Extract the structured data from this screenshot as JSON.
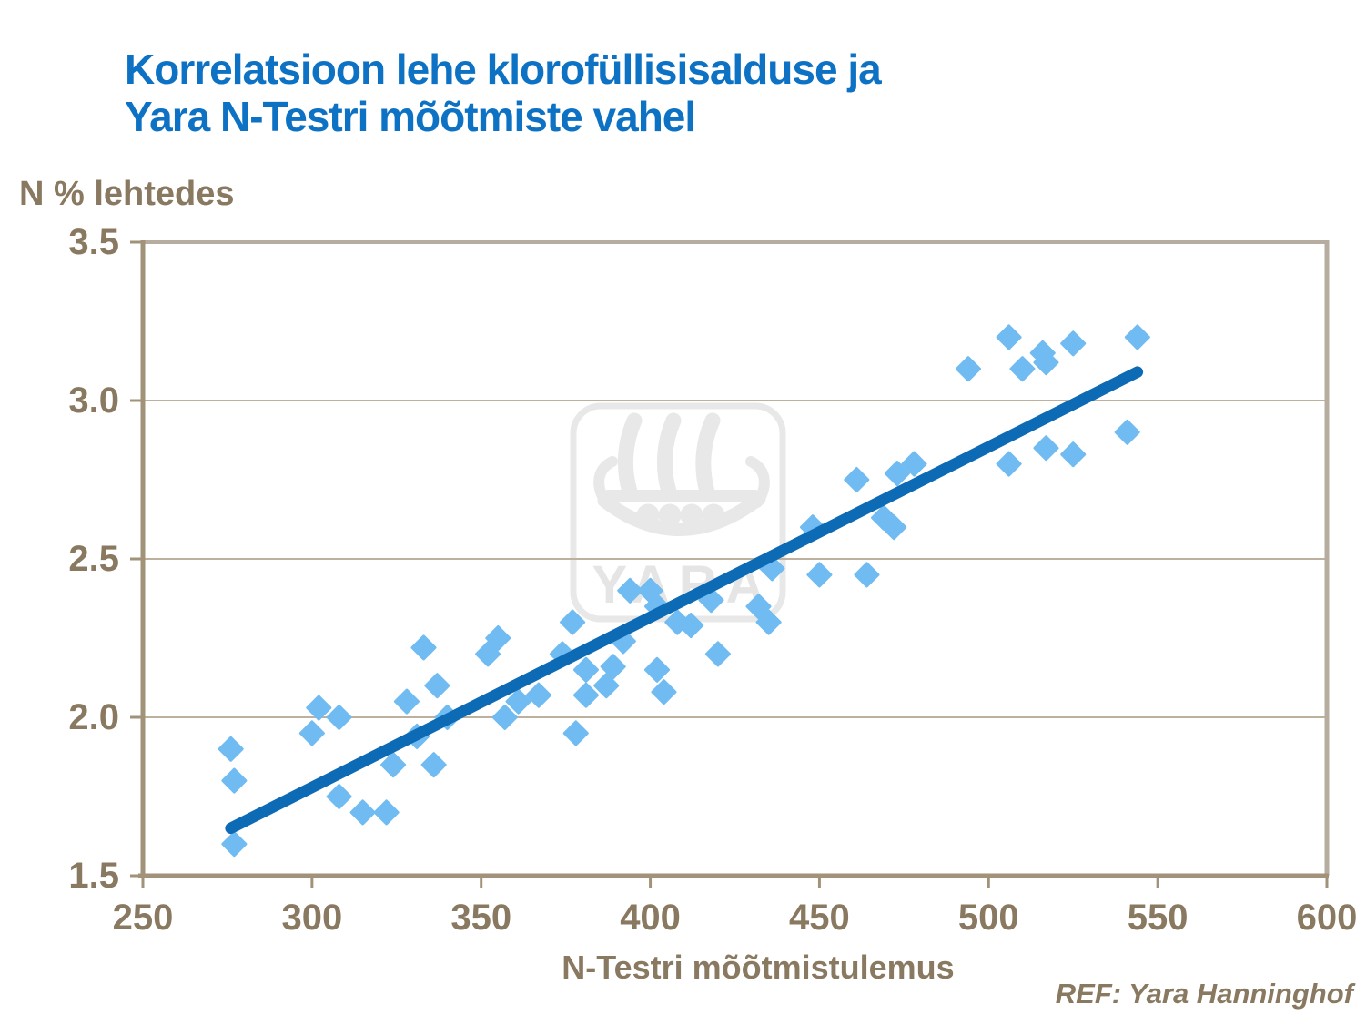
{
  "title": {
    "line1": "Korrelatsioon lehe klorofüllisisalduse ja",
    "line2": "Yara N-Testri mõõtmiste vahel"
  },
  "ref_note": "REF: Yara Hanninghof",
  "watermark": {
    "text": "YARA",
    "icon": "viking-ship-logo",
    "color": "#e8e8e8",
    "text_color": "#e5e5e5"
  },
  "colors": {
    "title_blue": "#0d72c4",
    "label_brown": "#8a7961",
    "axis_brown": "#a3927a",
    "grid_tan": "#bdb09c",
    "border_tan": "#b7aca0",
    "marker_blue": "#6fbbf2",
    "trend_blue": "#0d6ab4",
    "background": "#ffffff"
  },
  "chart_data": {
    "type": "scatter",
    "title": "Korrelatsioon lehe klorofüllisisalduse ja Yara N-Testri mõõtmiste vahel",
    "xlabel": "N-Testri mõõtmistulemus",
    "ylabel": "N % lehtedes",
    "xlim": [
      250,
      600
    ],
    "ylim": [
      1.5,
      3.5
    ],
    "x_ticks": [
      250,
      300,
      350,
      400,
      450,
      500,
      550,
      600
    ],
    "y_ticks": [
      3.5,
      3.0,
      2.5,
      2.0,
      1.5
    ],
    "x_tick_labels": [
      "250",
      "300",
      "350",
      "400",
      "450",
      "500",
      "550",
      "600"
    ],
    "y_tick_labels": [
      "3.5",
      "3.0",
      "2.5",
      "2.0",
      "1.5"
    ],
    "grid": "horizontal",
    "legend": "none",
    "marker": {
      "shape": "diamond",
      "color": "#6fbbf2",
      "size": 27
    },
    "trendline": {
      "x1": 276,
      "y1": 1.65,
      "x2": 544,
      "y2": 3.09,
      "color": "#0d6ab4",
      "width": 12.5
    },
    "points": [
      [
        276,
        1.9
      ],
      [
        277,
        1.8
      ],
      [
        277,
        1.6
      ],
      [
        300,
        1.95
      ],
      [
        302,
        2.03
      ],
      [
        308,
        2.0
      ],
      [
        308,
        1.75
      ],
      [
        315,
        1.7
      ],
      [
        322,
        1.7
      ],
      [
        324,
        1.85
      ],
      [
        328,
        2.05
      ],
      [
        331,
        1.94
      ],
      [
        333,
        2.22
      ],
      [
        336,
        1.85
      ],
      [
        337,
        2.1
      ],
      [
        340,
        2.0
      ],
      [
        352,
        2.2
      ],
      [
        355,
        2.25
      ],
      [
        357,
        2.0
      ],
      [
        361,
        2.05
      ],
      [
        367,
        2.07
      ],
      [
        374,
        2.2
      ],
      [
        377,
        2.3
      ],
      [
        378,
        1.95
      ],
      [
        381,
        2.15
      ],
      [
        381,
        2.07
      ],
      [
        387,
        2.1
      ],
      [
        389,
        2.16
      ],
      [
        392,
        2.24
      ],
      [
        394,
        2.4
      ],
      [
        400,
        2.4
      ],
      [
        402,
        2.35
      ],
      [
        402,
        2.15
      ],
      [
        404,
        2.08
      ],
      [
        408,
        2.3
      ],
      [
        412,
        2.29
      ],
      [
        418,
        2.37
      ],
      [
        420,
        2.2
      ],
      [
        432,
        2.35
      ],
      [
        435,
        2.3
      ],
      [
        436,
        2.47
      ],
      [
        448,
        2.6
      ],
      [
        450,
        2.45
      ],
      [
        464,
        2.45
      ],
      [
        461,
        2.75
      ],
      [
        469,
        2.63
      ],
      [
        472,
        2.6
      ],
      [
        473,
        2.77
      ],
      [
        478,
        2.8
      ],
      [
        494,
        3.1
      ],
      [
        506,
        3.2
      ],
      [
        510,
        3.1
      ],
      [
        506,
        2.8
      ],
      [
        516,
        3.15
      ],
      [
        517,
        3.12
      ],
      [
        517,
        2.85
      ],
      [
        525,
        3.18
      ],
      [
        525,
        2.83
      ],
      [
        541,
        2.9
      ],
      [
        544,
        3.2
      ]
    ]
  }
}
